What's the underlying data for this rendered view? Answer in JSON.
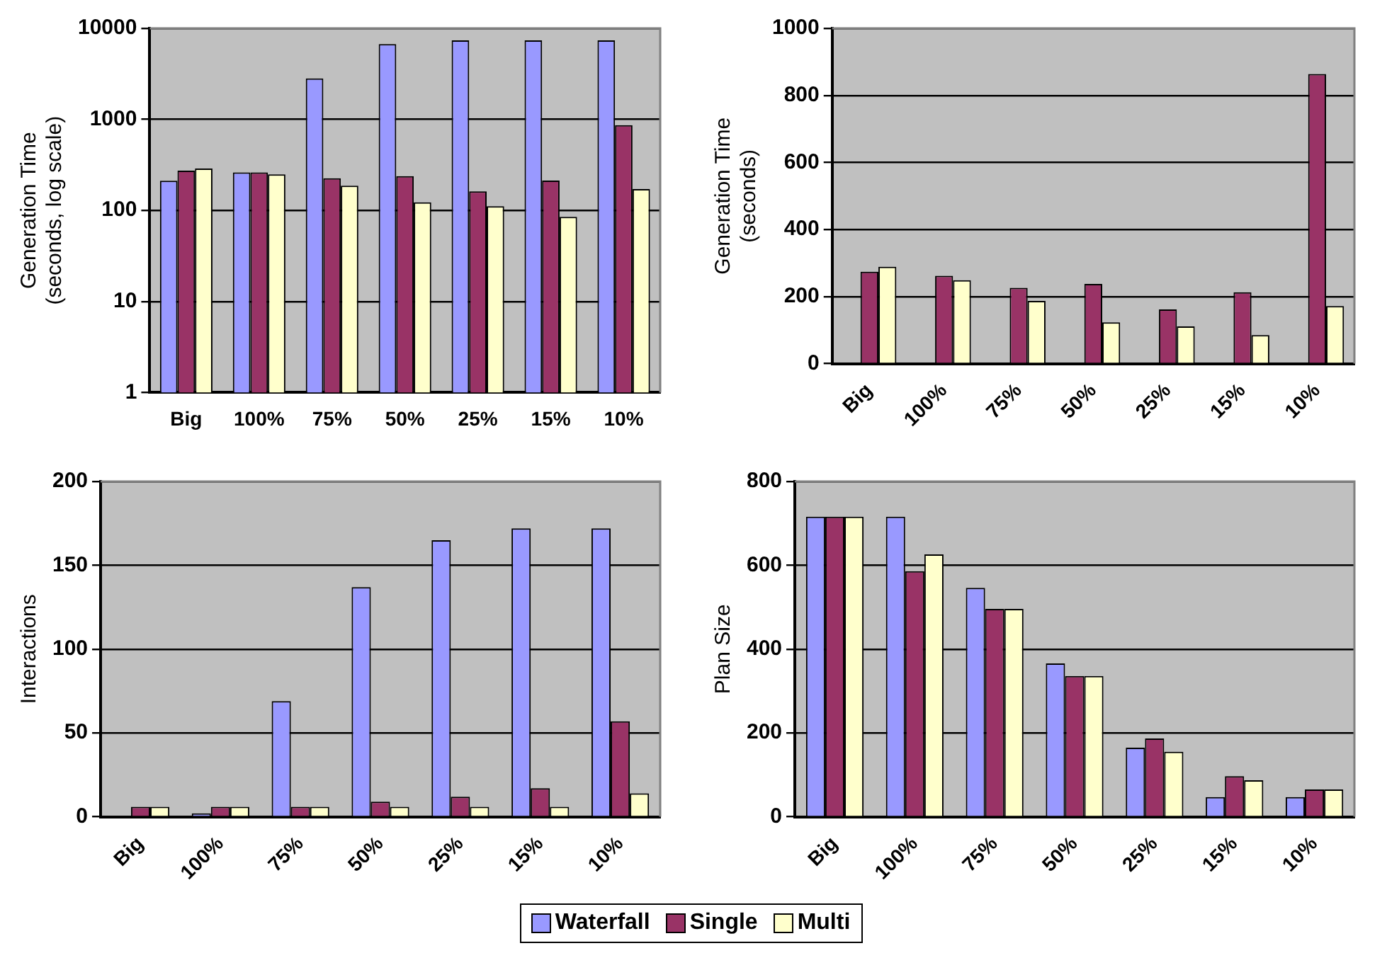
{
  "chart_data": [
    {
      "type": "bar",
      "ylabel": "Generation Time\n(seconds, log scale)",
      "log": true,
      "grid": "y",
      "legend": "bottom",
      "categories": [
        "Big",
        "100%",
        "75%",
        "50%",
        "25%",
        "15%",
        "10%"
      ],
      "ylim": [
        1,
        10000
      ],
      "yticks": [
        1,
        10,
        100,
        1000,
        10000
      ],
      "series": [
        {
          "name": "Waterfall",
          "color": "#9999ff",
          "values": [
            212,
            261,
            2820,
            6700,
            7380,
            7380,
            7380
          ]
        },
        {
          "name": "Single",
          "color": "#993366",
          "values": [
            274,
            262,
            226,
            238,
            162,
            213,
            864
          ]
        },
        {
          "name": "Multi",
          "color": "#ffffcc",
          "values": [
            289,
            249,
            187,
            123,
            111,
            85,
            172
          ]
        }
      ]
    },
    {
      "type": "bar",
      "ylabel": "Generation Time\n(seconds)",
      "grid": "y",
      "categories": [
        "Big",
        "100%",
        "75%",
        "50%",
        "25%",
        "15%",
        "10%"
      ],
      "ylim": [
        0,
        1000
      ],
      "yticks": [
        0,
        200,
        400,
        600,
        800,
        1000
      ],
      "series": [
        {
          "color": "#9999ff",
          "values": [
            null,
            null,
            null,
            null,
            null,
            null,
            null
          ]
        },
        {
          "color": "#993366",
          "values": [
            274,
            262,
            226,
            238,
            162,
            213,
            864
          ]
        },
        {
          "color": "#ffffcc",
          "values": [
            289,
            249,
            187,
            123,
            111,
            85,
            172
          ]
        }
      ]
    },
    {
      "type": "bar",
      "ylabel": "Interactions",
      "grid": "y",
      "categories": [
        "Big",
        "100%",
        "75%",
        "50%",
        "25%",
        "15%",
        "10%"
      ],
      "ylim": [
        0,
        200
      ],
      "yticks": [
        0,
        50,
        100,
        150,
        200
      ],
      "series": [
        {
          "color": "#9999ff",
          "values": [
            0,
            2,
            69,
            137,
            165,
            172,
            172
          ]
        },
        {
          "color": "#993366",
          "values": [
            6,
            6,
            6,
            9,
            12,
            17,
            57
          ]
        },
        {
          "color": "#ffffcc",
          "values": [
            6,
            6,
            6,
            6,
            6,
            6,
            14
          ]
        }
      ]
    },
    {
      "type": "bar",
      "ylabel": "Plan Size",
      "grid": "y",
      "categories": [
        "Big",
        "100%",
        "75%",
        "50%",
        "25%",
        "15%",
        "10%"
      ],
      "ylim": [
        0,
        800
      ],
      "yticks": [
        0,
        200,
        400,
        600,
        800
      ],
      "series": [
        {
          "color": "#9999ff",
          "values": [
            716,
            716,
            546,
            366,
            165,
            47,
            47
          ]
        },
        {
          "color": "#993366",
          "values": [
            716,
            586,
            496,
            336,
            187,
            97,
            65
          ]
        },
        {
          "color": "#ffffcc",
          "values": [
            716,
            626,
            496,
            336,
            155,
            87,
            65
          ]
        }
      ]
    }
  ]
}
